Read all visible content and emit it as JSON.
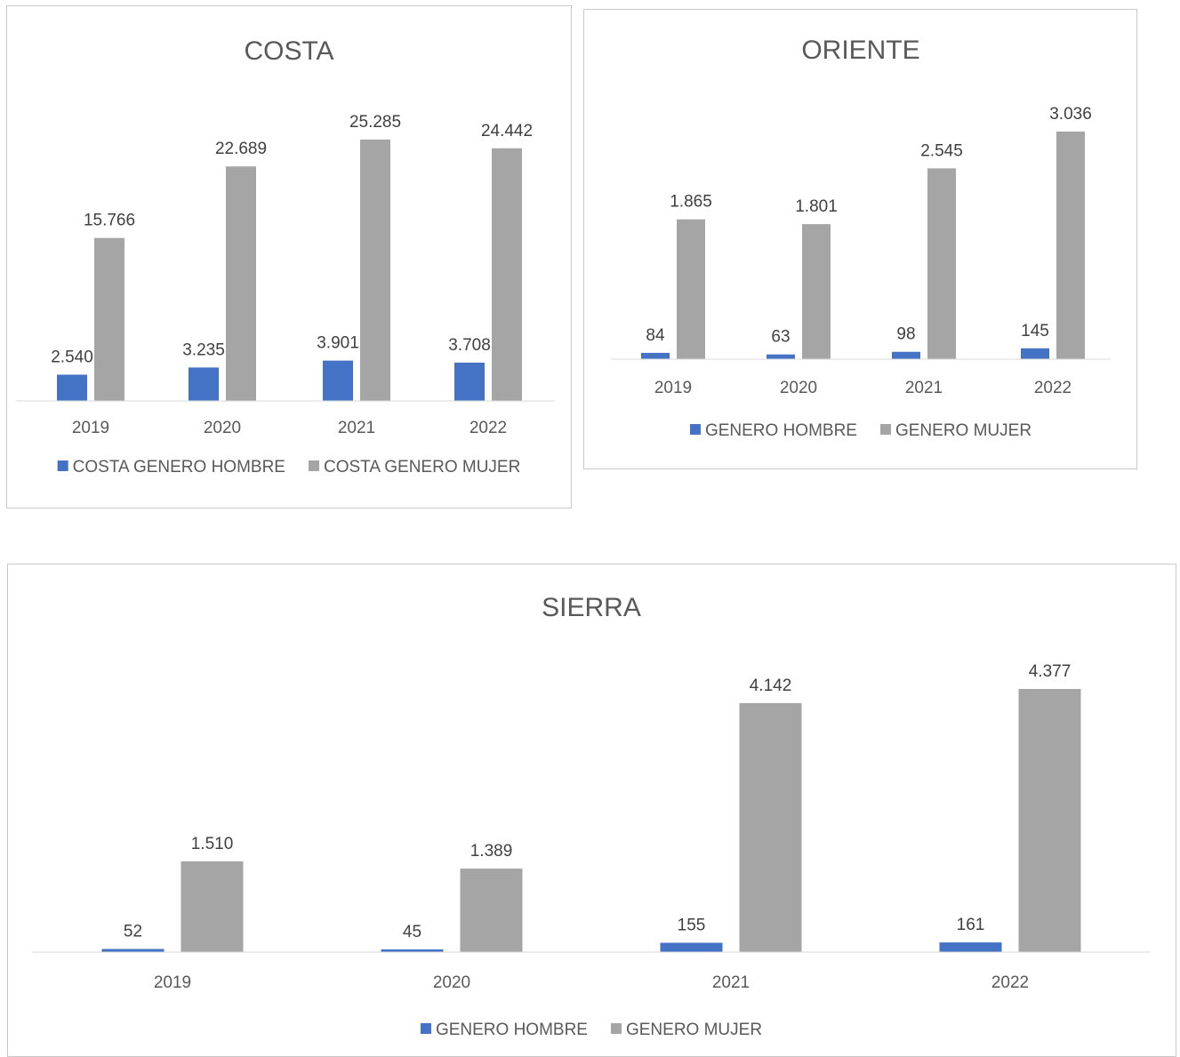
{
  "chart_data": [
    {
      "type": "bar",
      "title": "COSTA",
      "categories": [
        "2019",
        "2020",
        "2021",
        "2022"
      ],
      "series": [
        {
          "name": "COSTA GENERO HOMBRE",
          "values": [
            2540,
            3235,
            3901,
            3708
          ],
          "labels": [
            "2.540",
            "3.235",
            "3.901",
            "3.708"
          ],
          "color": "#4472c4"
        },
        {
          "name": "COSTA GENERO MUJER",
          "values": [
            15766,
            22689,
            25285,
            24442
          ],
          "labels": [
            "15.766",
            "22.689",
            "25.285",
            "24.442"
          ],
          "color": "#a5a5a5"
        }
      ],
      "legend": "bottom",
      "grid": false
    },
    {
      "type": "bar",
      "title": "ORIENTE",
      "categories": [
        "2019",
        "2020",
        "2021",
        "2022"
      ],
      "series": [
        {
          "name": "GENERO HOMBRE",
          "values": [
            84,
            63,
            98,
            145
          ],
          "labels": [
            "84",
            "63",
            "98",
            "145"
          ],
          "color": "#4472c4"
        },
        {
          "name": "GENERO MUJER",
          "values": [
            1865,
            1801,
            2545,
            3036
          ],
          "labels": [
            "1.865",
            "1.801",
            "2.545",
            "3.036"
          ],
          "color": "#a5a5a5"
        }
      ],
      "legend": "bottom",
      "grid": false
    },
    {
      "type": "bar",
      "title": "SIERRA",
      "categories": [
        "2019",
        "2020",
        "2021",
        "2022"
      ],
      "series": [
        {
          "name": "GENERO HOMBRE",
          "values": [
            52,
            45,
            155,
            161
          ],
          "labels": [
            "52",
            "45",
            "155",
            "161"
          ],
          "color": "#4472c4"
        },
        {
          "name": "GENERO MUJER",
          "values": [
            1510,
            1389,
            4142,
            4377
          ],
          "labels": [
            "1.510",
            "1.389",
            "4.142",
            "4.377"
          ],
          "color": "#a5a5a5"
        }
      ],
      "legend": "bottom",
      "grid": false
    }
  ]
}
